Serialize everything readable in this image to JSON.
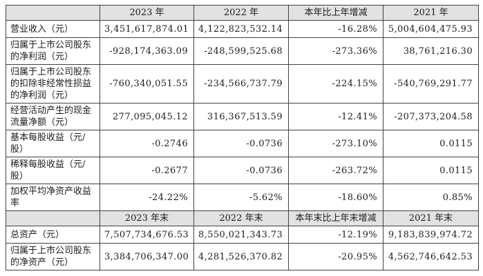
{
  "page": {
    "background": "#ffffff"
  },
  "table": {
    "colors": {
      "header_bg": "#e2e2e2",
      "border": "#404040",
      "text": "#1c1c1c"
    },
    "sections": [
      {
        "header": [
          "",
          "2023 年",
          "2022 年",
          "本年比上年增减",
          "2021 年"
        ],
        "rows": [
          {
            "label": "营业收入（元）",
            "values": [
              "3,451,617,874.01",
              "4,122,823,532.14",
              "-16.28%",
              "5,004,604,475.93"
            ]
          },
          {
            "label": "归属于上市公司股东的净利润（元）",
            "values": [
              "-928,174,363.09",
              "-248,599,525.68",
              "-273.36%",
              "38,761,216.30"
            ]
          },
          {
            "label": "归属于上市公司股东的扣除非经常性损益的净利润（元）",
            "values": [
              "-760,340,051.55",
              "-234,566,737.79",
              "-224.15%",
              "-540,769,291.77"
            ]
          },
          {
            "label": "经营活动产生的现金流量净额（元）",
            "values": [
              "277,095,045.12",
              "316,367,513.59",
              "-12.41%",
              "-207,373,204.58"
            ]
          },
          {
            "label": "基本每股收益（元/股）",
            "values": [
              "-0.2746",
              "-0.0736",
              "-273.10%",
              "0.0115"
            ]
          },
          {
            "label": "稀释每股收益（元/股）",
            "values": [
              "-0.2677",
              "-0.0736",
              "-263.72%",
              "0.0115"
            ]
          },
          {
            "label": "加权平均净资产收益率",
            "values": [
              "-24.22%",
              "-5.62%",
              "-18.60%",
              "0.85%"
            ]
          }
        ]
      },
      {
        "header": [
          "",
          "2023 年末",
          "2022 年末",
          "本年末比上年末增减",
          "2021 年末"
        ],
        "rows": [
          {
            "label": "总资产（元）",
            "values": [
              "7,507,734,676.53",
              "8,550,021,343.73",
              "-12.19%",
              "9,183,839,974.72"
            ]
          },
          {
            "label": "归属于上市公司股东的净资产（元）",
            "values": [
              "3,384,706,347.00",
              "4,281,526,370.82",
              "-20.95%",
              "4,562,746,642.53"
            ]
          }
        ]
      }
    ]
  }
}
